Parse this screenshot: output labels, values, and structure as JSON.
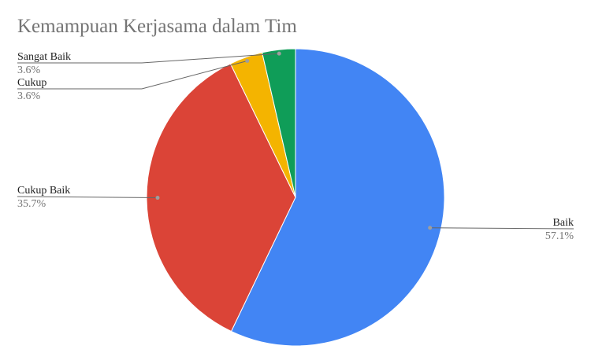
{
  "chart_data": {
    "type": "pie",
    "title": "Kemampuan Kerjasama dalam Tim",
    "slices": [
      {
        "name": "Baik",
        "value": 57.1,
        "label": "57.1%",
        "color": "#4285f4"
      },
      {
        "name": "Cukup Baik",
        "value": 35.7,
        "label": "35.7%",
        "color": "#db4437"
      },
      {
        "name": "Cukup",
        "value": 3.6,
        "label": "3.6%",
        "color": "#f4b400"
      },
      {
        "name": "Sangat Baik",
        "value": 3.6,
        "label": "3.6%",
        "color": "#0f9d58"
      }
    ],
    "start_angle": "12 o'clock",
    "direction": "clockwise",
    "legend": "none",
    "labels": "outside with leader lines"
  }
}
